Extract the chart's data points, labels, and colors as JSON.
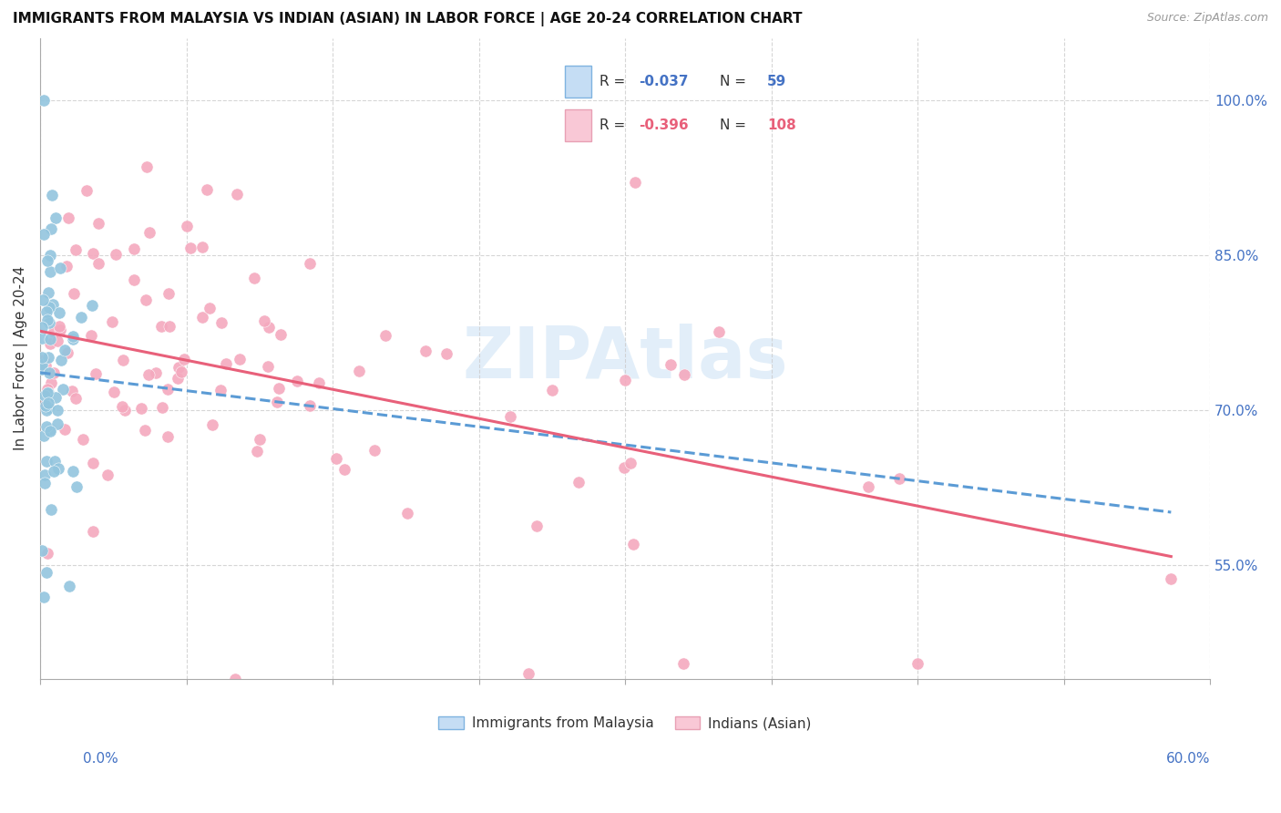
{
  "title": "IMMIGRANTS FROM MALAYSIA VS INDIAN (ASIAN) IN LABOR FORCE | AGE 20-24 CORRELATION CHART",
  "source": "Source: ZipAtlas.com",
  "ylabel": "In Labor Force | Age 20-24",
  "yticks_labels": [
    "55.0%",
    "70.0%",
    "85.0%",
    "100.0%"
  ],
  "ytick_values": [
    0.55,
    0.7,
    0.85,
    1.0
  ],
  "xlim": [
    0.0,
    0.6
  ],
  "ylim": [
    0.44,
    1.06
  ],
  "malaysia_R": -0.037,
  "malaysia_N": 59,
  "indian_R": -0.396,
  "indian_N": 108,
  "malaysia_color": "#92c5de",
  "india_color": "#f4a9be",
  "malaysia_line_color": "#5b9bd5",
  "indian_line_color": "#e8607a",
  "watermark_color": "#d0e4f5",
  "legend_label_1": "Immigrants from Malaysia",
  "legend_label_2": "Indians (Asian)",
  "legend_box_color": "#4472c4",
  "legend_R_color": "#4472c4",
  "legend_R2_color": "#e8607a"
}
